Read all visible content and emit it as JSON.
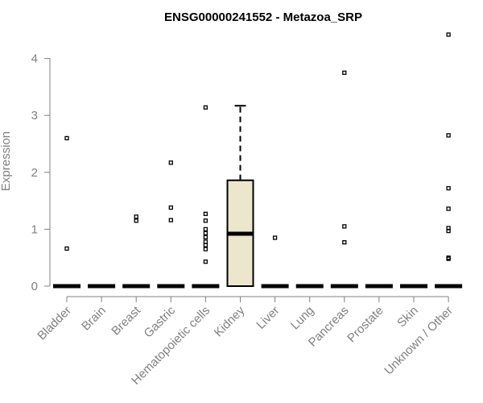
{
  "chart_data": {
    "type": "box",
    "title": "ENSG00000241552 - Metazoa_SRP",
    "xlabel": "",
    "ylabel": "Expression",
    "ylim": [
      0,
      4.4
    ],
    "yticks": [
      0,
      1,
      2,
      3,
      4
    ],
    "grid": false,
    "box_color": "#ECE6CC",
    "categories": [
      "Bladder",
      "Brain",
      "Breast",
      "Gastric",
      "Hematopoietic cells",
      "Kidney",
      "Liver",
      "Lung",
      "Pancreas",
      "Prostate",
      "Skin",
      "Unknown / Other"
    ],
    "boxes": [
      {
        "category": "Bladder",
        "q1": 0,
        "median": 0,
        "q3": 0,
        "whisker_low": 0,
        "whisker_high": 0,
        "outliers": [
          0.66,
          2.6
        ]
      },
      {
        "category": "Brain",
        "q1": 0,
        "median": 0,
        "q3": 0,
        "whisker_low": 0,
        "whisker_high": 0,
        "outliers": []
      },
      {
        "category": "Breast",
        "q1": 0,
        "median": 0,
        "q3": 0,
        "whisker_low": 0,
        "whisker_high": 0,
        "outliers": [
          1.15,
          1.22
        ]
      },
      {
        "category": "Gastric",
        "q1": 0,
        "median": 0,
        "q3": 0,
        "whisker_low": 0,
        "whisker_high": 0,
        "outliers": [
          1.16,
          1.38,
          2.17
        ]
      },
      {
        "category": "Hematopoietic cells",
        "q1": 0,
        "median": 0,
        "q3": 0,
        "whisker_low": 0,
        "whisker_high": 0,
        "outliers": [
          0.43,
          0.65,
          0.72,
          0.78,
          0.86,
          0.93,
          1.0,
          1.15,
          1.27,
          3.14
        ]
      },
      {
        "category": "Kidney",
        "q1": 0,
        "median": 0.92,
        "q3": 1.86,
        "whisker_low": 0,
        "whisker_high": 3.17,
        "outliers": []
      },
      {
        "category": "Liver",
        "q1": 0,
        "median": 0,
        "q3": 0,
        "whisker_low": 0,
        "whisker_high": 0,
        "outliers": [
          0.85
        ]
      },
      {
        "category": "Lung",
        "q1": 0,
        "median": 0,
        "q3": 0,
        "whisker_low": 0,
        "whisker_high": 0,
        "outliers": []
      },
      {
        "category": "Pancreas",
        "q1": 0,
        "median": 0,
        "q3": 0,
        "whisker_low": 0,
        "whisker_high": 0,
        "outliers": [
          0.77,
          1.05,
          3.75
        ]
      },
      {
        "category": "Prostate",
        "q1": 0,
        "median": 0,
        "q3": 0,
        "whisker_low": 0,
        "whisker_high": 0,
        "outliers": []
      },
      {
        "category": "Skin",
        "q1": 0,
        "median": 0,
        "q3": 0,
        "whisker_low": 0,
        "whisker_high": 0,
        "outliers": []
      },
      {
        "category": "Unknown / Other",
        "q1": 0,
        "median": 0,
        "q3": 0,
        "whisker_low": 0,
        "whisker_high": 0,
        "outliers": [
          0.48,
          0.5,
          0.97,
          1.02,
          1.36,
          1.72,
          2.65,
          4.42
        ]
      }
    ]
  }
}
